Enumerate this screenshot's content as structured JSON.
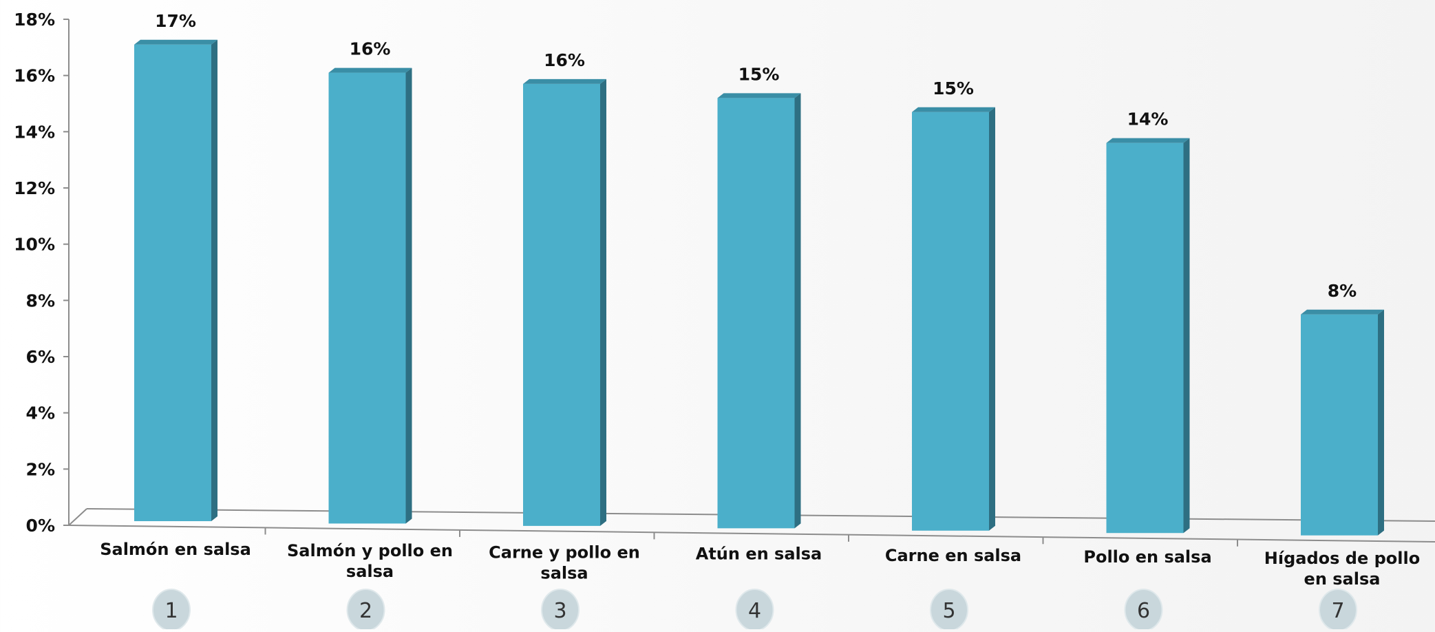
{
  "chart_data": {
    "type": "bar",
    "categories": [
      "Salmón en salsa",
      "Salmón y pollo en salsa",
      "Carne y pollo en salsa",
      "Atún en salsa",
      "Carne en salsa",
      "Pollo en salsa",
      "Hígados de pollo en salsa"
    ],
    "category_lines": [
      [
        "Salmón en salsa"
      ],
      [
        "Salmón y pollo en",
        "salsa"
      ],
      [
        "Carne y pollo en",
        "salsa"
      ],
      [
        "Atún en salsa"
      ],
      [
        "Carne en salsa"
      ],
      [
        "Pollo en salsa"
      ],
      [
        "Hígados de pollo",
        "en salsa"
      ]
    ],
    "values": [
      17.1,
      16.1,
      15.7,
      15.2,
      14.7,
      13.6,
      7.5
    ],
    "data_labels": [
      "17%",
      "16%",
      "16%",
      "15%",
      "15%",
      "14%",
      "8%"
    ],
    "rank_labels": [
      "1",
      "2",
      "3",
      "4",
      "5",
      "6",
      "7"
    ],
    "ylim": [
      0,
      18
    ],
    "yticks": [
      "0%",
      "2%",
      "4%",
      "6%",
      "8%",
      "10%",
      "12%",
      "14%",
      "16%",
      "18%"
    ],
    "xlabel": "",
    "ylabel": "",
    "title": "",
    "grid": false,
    "legend": "none",
    "colors": {
      "bar_front": "#4bafca",
      "bar_side": "#2e6f82",
      "bar_top": "#3a8ea6",
      "axis": "#8c8c8c",
      "rank_circle": "#c9d7dc"
    }
  }
}
